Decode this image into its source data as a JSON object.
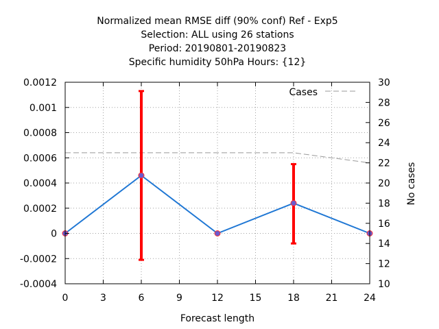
{
  "chart_data": {
    "type": "line",
    "title_lines": [
      "Normalized mean RMSE diff (90% conf) Ref - Exp5",
      "Selection: ALL using    26 stations",
      "Period: 20190801-20190823",
      "Specific humidity 50hPa   Hours: {12}"
    ],
    "xlabel": "Forecast length",
    "ylabel": "",
    "y2label": "No cases",
    "xlim": [
      0,
      24
    ],
    "ylim": [
      -0.0004,
      0.0012
    ],
    "y2lim": [
      10,
      30
    ],
    "x_ticks": [
      "0",
      "3",
      "6",
      "9",
      "12",
      "15",
      "18",
      "21",
      "24"
    ],
    "y_ticks": [
      "-0.0004",
      "-0.0002",
      "0",
      "0.0002",
      "0.0004",
      "0.0006",
      "0.0008",
      "0.001",
      "0.0012"
    ],
    "y2_ticks": [
      "10",
      "12",
      "14",
      "16",
      "18",
      "20",
      "22",
      "24",
      "26",
      "28",
      "30"
    ],
    "grid": true,
    "legend_position": "top-right",
    "series": [
      {
        "name": "",
        "axis": "left",
        "color": "#1f77d4",
        "marker_color": "#6a5acd",
        "x": [
          0,
          6,
          12,
          18,
          24
        ],
        "y": [
          0.0,
          0.00046,
          0.0,
          0.00024,
          0.0
        ]
      },
      {
        "name": "Cases",
        "axis": "right",
        "style": "dashed",
        "color": "#999999",
        "x": [
          0,
          6,
          12,
          18,
          24
        ],
        "y": [
          23,
          23,
          23,
          23,
          22
        ]
      }
    ],
    "error_bars": {
      "color": "#ff0000",
      "x": [
        6,
        18
      ],
      "low": [
        -0.00021,
        -8e-05
      ],
      "high": [
        0.00113,
        0.00055
      ]
    }
  }
}
